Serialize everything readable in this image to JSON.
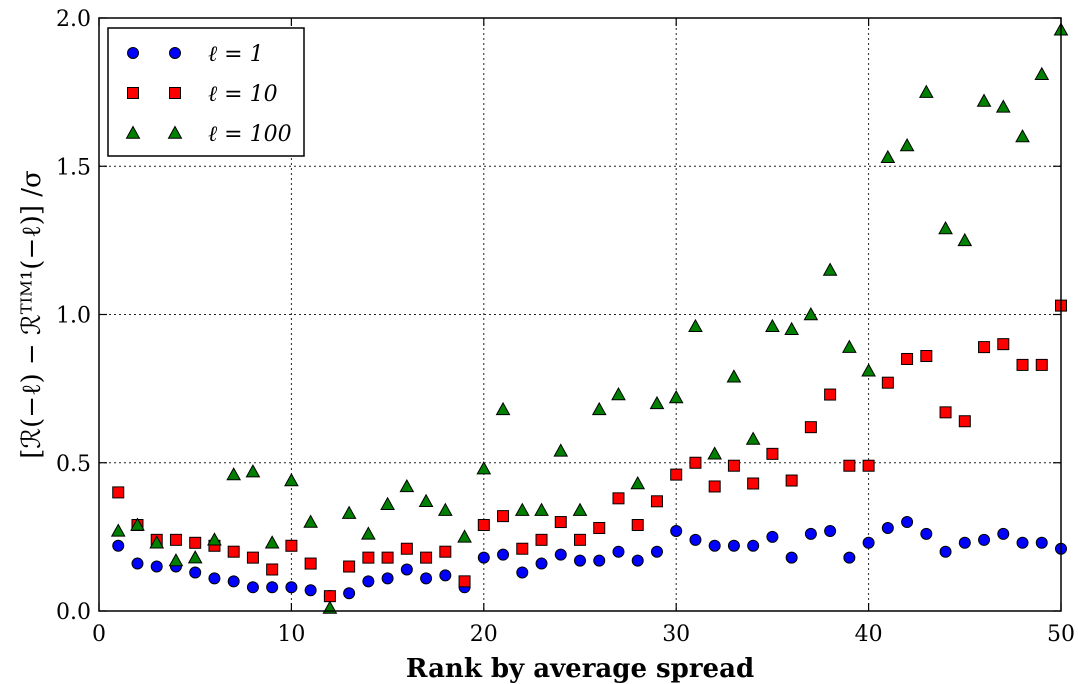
{
  "chart_data": {
    "type": "scatter",
    "xlabel": "Rank by average spread",
    "ylabel": "[ℛ(−ℓ) − ℛᵀᴵᴹ¹(−ℓ)] /σ",
    "xlim": [
      0,
      50
    ],
    "ylim": [
      0,
      2.0
    ],
    "xticks": [
      0,
      10,
      20,
      30,
      40,
      50
    ],
    "yticks": [
      "0.0",
      "0.5",
      "1.0",
      "1.5",
      "2.0"
    ],
    "grid": true,
    "legend_position": "top-left",
    "series": [
      {
        "name": "ℓ = 1",
        "marker": "circle",
        "color": "#0000ff",
        "x": [
          1,
          2,
          3,
          4,
          5,
          6,
          7,
          8,
          9,
          10,
          11,
          12,
          13,
          14,
          15,
          16,
          17,
          18,
          19,
          20,
          21,
          22,
          23,
          24,
          25,
          26,
          27,
          28,
          29,
          30,
          31,
          32,
          33,
          34,
          35,
          36,
          37,
          38,
          39,
          40,
          41,
          42,
          43,
          44,
          45,
          46,
          47,
          48,
          49,
          50
        ],
        "y": [
          0.22,
          0.16,
          0.15,
          0.15,
          0.13,
          0.11,
          0.1,
          0.08,
          0.08,
          0.08,
          0.07,
          0.05,
          0.06,
          0.1,
          0.11,
          0.14,
          0.11,
          0.12,
          0.08,
          0.18,
          0.19,
          0.13,
          0.16,
          0.19,
          0.17,
          0.17,
          0.2,
          0.17,
          0.2,
          0.27,
          0.24,
          0.22,
          0.22,
          0.22,
          0.25,
          0.18,
          0.26,
          0.27,
          0.18,
          0.23,
          0.28,
          0.3,
          0.26,
          0.2,
          0.23,
          0.24,
          0.26,
          0.23,
          0.23,
          0.21
        ]
      },
      {
        "name": "ℓ = 10",
        "marker": "square",
        "color": "#ff0000",
        "x": [
          1,
          2,
          3,
          4,
          5,
          6,
          7,
          8,
          9,
          10,
          11,
          12,
          13,
          14,
          15,
          16,
          17,
          18,
          19,
          20,
          21,
          22,
          23,
          24,
          25,
          26,
          27,
          28,
          29,
          30,
          31,
          32,
          33,
          34,
          35,
          36,
          37,
          38,
          39,
          40,
          41,
          42,
          43,
          44,
          45,
          46,
          47,
          48,
          49,
          50
        ],
        "y": [
          0.4,
          0.29,
          0.24,
          0.24,
          0.23,
          0.22,
          0.2,
          0.18,
          0.14,
          0.22,
          0.16,
          0.05,
          0.15,
          0.18,
          0.18,
          0.21,
          0.18,
          0.2,
          0.1,
          0.29,
          0.32,
          0.21,
          0.24,
          0.3,
          0.24,
          0.28,
          0.38,
          0.29,
          0.37,
          0.46,
          0.5,
          0.42,
          0.49,
          0.43,
          0.53,
          0.44,
          0.62,
          0.73,
          0.49,
          0.49,
          0.77,
          0.85,
          0.86,
          0.67,
          0.64,
          0.89,
          0.9,
          0.83,
          0.83,
          1.03
        ]
      },
      {
        "name": "ℓ = 100",
        "marker": "triangle",
        "color": "#008000",
        "x": [
          1,
          2,
          3,
          4,
          5,
          6,
          7,
          8,
          9,
          10,
          11,
          12,
          13,
          14,
          15,
          16,
          17,
          18,
          19,
          20,
          21,
          22,
          23,
          24,
          25,
          26,
          27,
          28,
          29,
          30,
          31,
          32,
          33,
          34,
          35,
          36,
          37,
          38,
          39,
          40,
          41,
          42,
          43,
          44,
          45,
          46,
          47,
          48,
          49,
          50
        ],
        "y": [
          0.27,
          0.29,
          0.23,
          0.17,
          0.18,
          0.24,
          0.46,
          0.47,
          0.23,
          0.44,
          0.3,
          0.01,
          0.33,
          0.26,
          0.36,
          0.42,
          0.37,
          0.34,
          0.25,
          0.48,
          0.68,
          0.34,
          0.34,
          0.54,
          0.34,
          0.68,
          0.73,
          0.43,
          0.7,
          0.72,
          0.96,
          0.53,
          0.79,
          0.58,
          0.96,
          0.95,
          1.0,
          1.15,
          0.89,
          0.81,
          1.53,
          1.57,
          1.75,
          1.29,
          1.25,
          1.72,
          1.7,
          1.6,
          1.81,
          1.96
        ]
      }
    ]
  }
}
